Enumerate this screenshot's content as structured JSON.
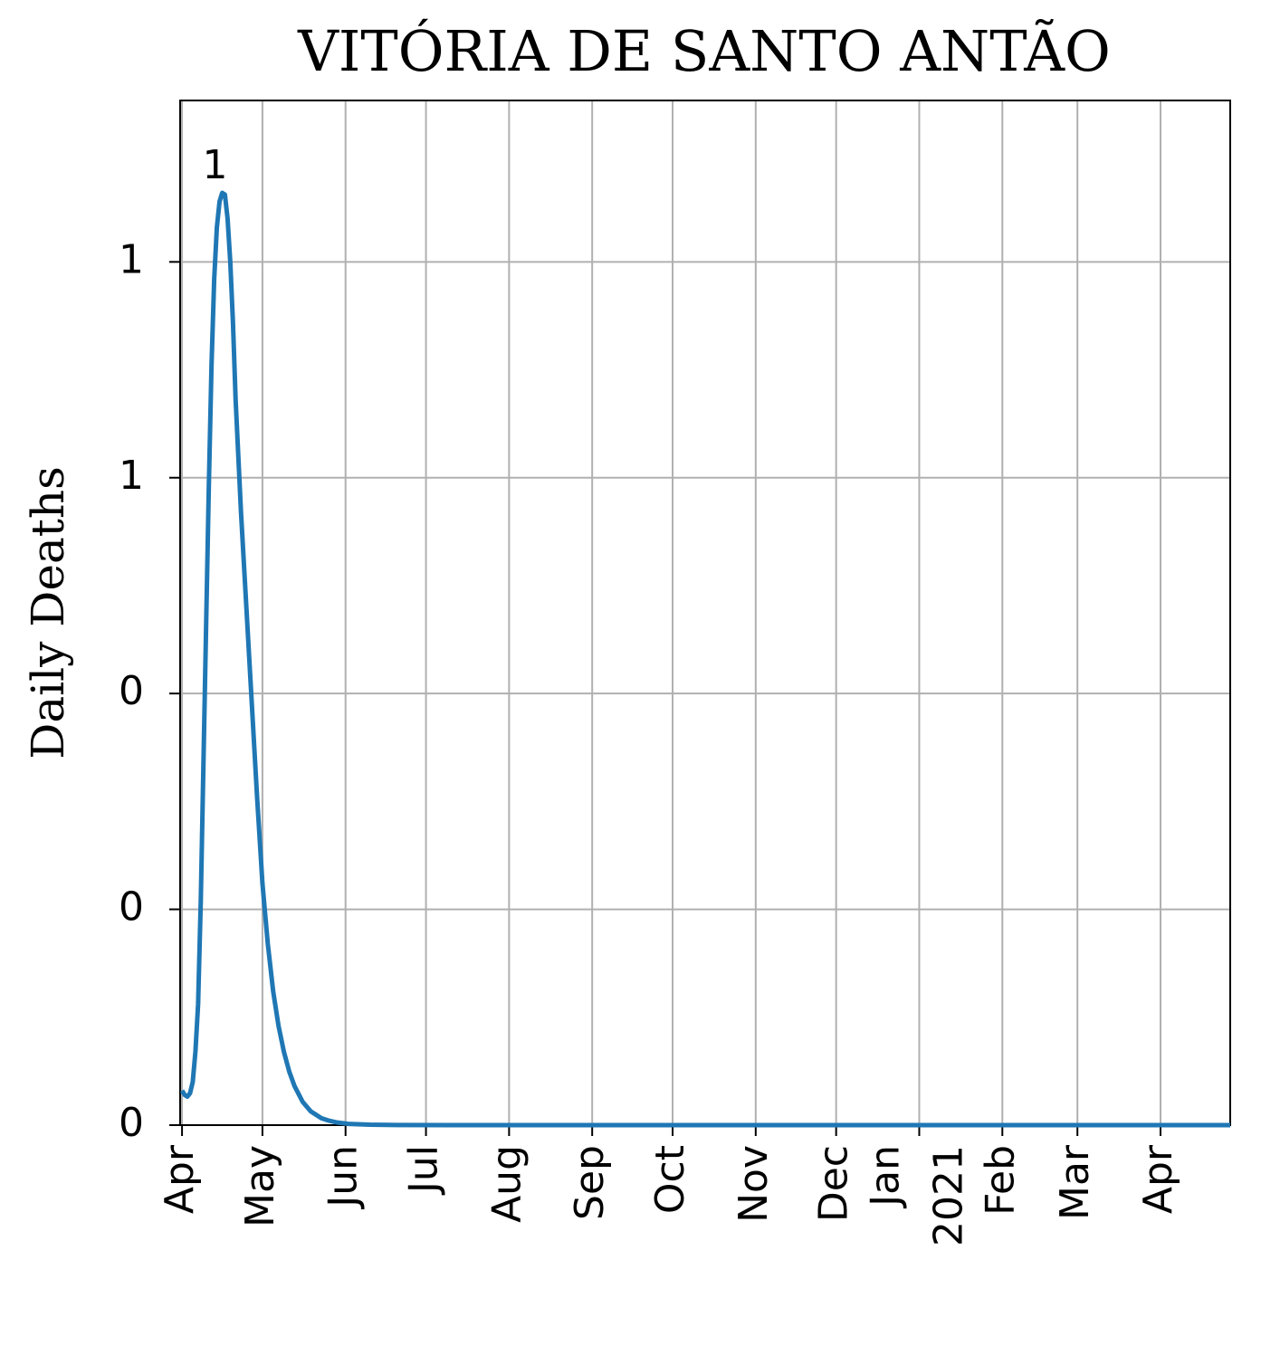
{
  "chart_data": {
    "type": "line",
    "title": "VITÓRIA DE SANTO ANTÃO",
    "y_label": "Daily Deaths",
    "x": [
      0,
      1,
      2,
      3,
      4,
      5,
      6,
      7,
      8,
      9,
      10,
      11,
      12,
      13,
      14,
      15,
      16,
      17,
      18,
      19,
      20,
      22,
      24,
      26,
      28,
      30,
      32,
      34,
      36,
      38,
      40,
      42,
      45,
      48,
      52,
      55,
      58,
      62,
      70,
      80,
      100,
      150,
      200,
      250,
      300,
      350,
      391
    ],
    "series": [
      {
        "name": "Daily Deaths",
        "color": "#1f77b4",
        "values": [
          0.04,
          0.035,
          0.033,
          0.037,
          0.05,
          0.085,
          0.14,
          0.26,
          0.42,
          0.58,
          0.74,
          0.88,
          0.98,
          1.04,
          1.07,
          1.08,
          1.078,
          1.05,
          1.0,
          0.93,
          0.84,
          0.71,
          0.6,
          0.49,
          0.38,
          0.28,
          0.21,
          0.155,
          0.115,
          0.085,
          0.062,
          0.045,
          0.027,
          0.016,
          0.008,
          0.005,
          0.003,
          0.0015,
          0.0005,
          0.0001,
          0,
          0,
          0,
          0,
          0,
          0,
          0
        ]
      }
    ],
    "annotation": "1",
    "xlim": [
      -0.7,
      391
    ],
    "xticks": [
      {
        "value": 0,
        "label": "Apr"
      },
      {
        "value": 30,
        "label": "May"
      },
      {
        "value": 61,
        "label": "Jun"
      },
      {
        "value": 91,
        "label": "Jul"
      },
      {
        "value": 122,
        "label": "Aug"
      },
      {
        "value": 153,
        "label": "Sep"
      },
      {
        "value": 183,
        "label": "Oct"
      },
      {
        "value": 214,
        "label": "Nov"
      },
      {
        "value": 244,
        "label": "Dec"
      },
      {
        "value": 275,
        "label": [
          "Jan",
          "2021"
        ]
      },
      {
        "value": 306,
        "label": "Feb"
      },
      {
        "value": 334,
        "label": "Mar"
      },
      {
        "value": 365,
        "label": "Apr"
      }
    ],
    "ylim": [
      0,
      1.187
    ],
    "yticks": [
      0,
      {
        "value": 0.25,
        "label": "0"
      },
      {
        "value": 0.5,
        "label": "0"
      },
      {
        "value": 0.75,
        "label": "1"
      },
      1
    ],
    "grid": true
  }
}
